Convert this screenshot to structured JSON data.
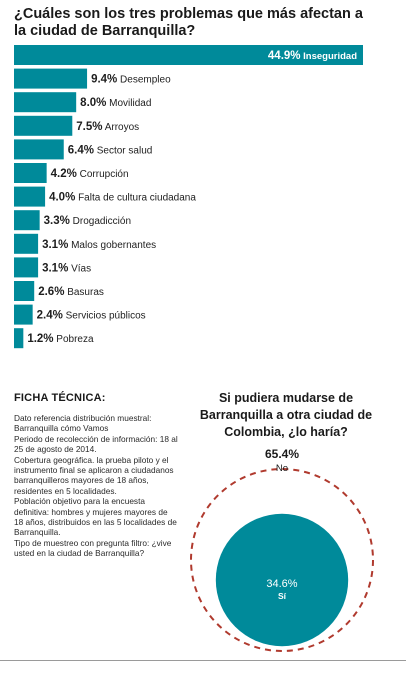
{
  "title": "¿Cuáles son los tres problemas que más afectan a la ciudad de Barranquilla?",
  "chart_data": [
    {
      "type": "bar",
      "orientation": "horizontal",
      "title": "¿Cuáles son los tres problemas que más afectan a la ciudad de Barranquilla?",
      "categories": [
        "Inseguridad",
        "Desempleo",
        "Movilidad",
        "Arroyos",
        "Sector salud",
        "Corrupción",
        "Falta de cultura ciudadana",
        "Drogadicción",
        "Malos gobernantes",
        "Vías",
        "Basuras",
        "Servicios públicos",
        "Pobreza"
      ],
      "values": [
        44.9,
        9.4,
        8.0,
        7.5,
        6.4,
        4.2,
        4.0,
        3.3,
        3.1,
        3.1,
        2.6,
        2.4,
        1.2
      ],
      "value_labels": [
        "44.9%",
        "9.4%",
        "8.0%",
        "7.5%",
        "6.4%",
        "4.2%",
        "4.0%",
        "3.3%",
        "3.1%",
        "3.1%",
        "2.6%",
        "2.4%",
        "1.2%"
      ],
      "unit": "%",
      "color": "#008a9a",
      "grid": false
    },
    {
      "type": "pie",
      "title": "Si pudiera mudarse de Barranquilla a otra ciudad de Colombia, ¿lo haría?",
      "slices": [
        {
          "label": "No",
          "value": 65.4,
          "value_label": "65.4%",
          "style": "dashed-outline",
          "color": "#b03a2e"
        },
        {
          "label": "Sí",
          "value": 34.6,
          "value_label": "34.6%",
          "style": "filled",
          "color": "#008a9a"
        }
      ]
    }
  ],
  "ficha": {
    "title": "FICHA TÉCNICA:",
    "items": [
      "Dato referencia distribución muestral: Barranquilla cómo Vamos",
      "Periodo de recolección de información: 18 al 25 de agosto de 2014.",
      "Cobertura geográfica. la prueba piloto y el instrumento final se aplicaron a ciudadanos barranquilleros mayores de 18 años, residentes en 5 localidades.",
      "Población objetivo para la encuesta definitiva: hombres y mujeres mayores de 18 años, distribuidos en las 5 localidades de Barranquilla.",
      "Tipo de muestreo con pregunta filtro: ¿vive usted en la ciudad de Barranquilla?"
    ]
  }
}
